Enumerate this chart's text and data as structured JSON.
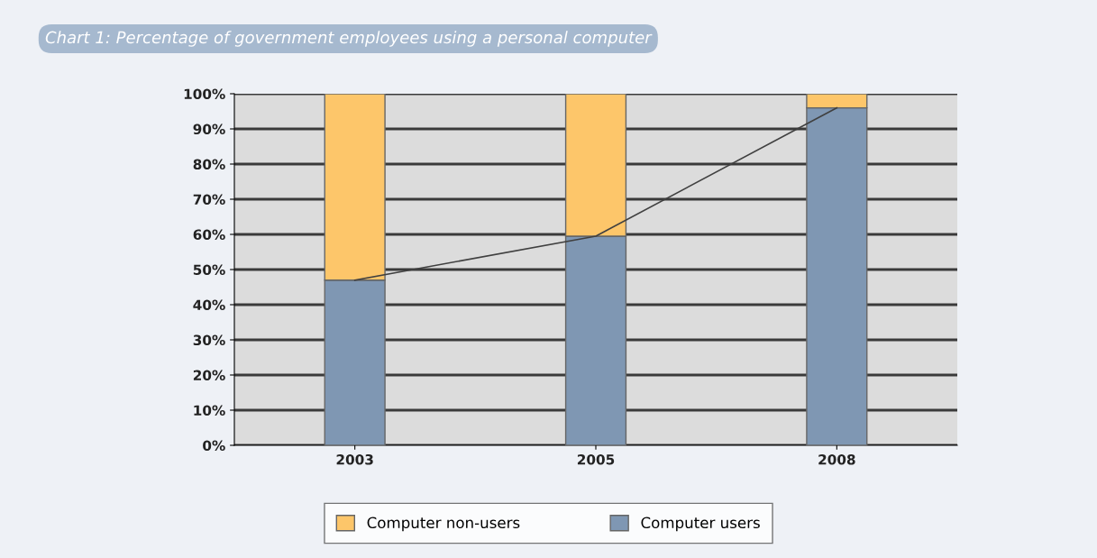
{
  "chart_data": {
    "type": "bar",
    "title": "Chart 1: Percentage of government employees using a personal computer",
    "categories": [
      "2003",
      "2005",
      "2008"
    ],
    "stacked": true,
    "series": [
      {
        "name": "Computer users",
        "color": "#7f97b3",
        "values": [
          47,
          59.5,
          96
        ]
      },
      {
        "name": "Computer non-users",
        "color": "#fdc66a",
        "values": [
          53,
          40.5,
          4
        ]
      },
      {
        "type": "line",
        "color": "#404040",
        "values": [
          47,
          59.5,
          96
        ]
      }
    ],
    "ylim": [
      0,
      100
    ],
    "yticks": [
      {
        "value": 0,
        "label": "0%"
      },
      {
        "value": 10,
        "label": "10%"
      },
      {
        "value": 20,
        "label": "20%"
      },
      {
        "value": 30,
        "label": "30%"
      },
      {
        "value": 40,
        "label": "40%"
      },
      {
        "value": 50,
        "label": "50%"
      },
      {
        "value": 60,
        "label": "60%"
      },
      {
        "value": 70,
        "label": "70%"
      },
      {
        "value": 80,
        "label": "80%"
      },
      {
        "value": 90,
        "label": "90%"
      },
      {
        "value": 100,
        "label": "100%"
      }
    ],
    "grid": "y",
    "legend": "bottom"
  }
}
